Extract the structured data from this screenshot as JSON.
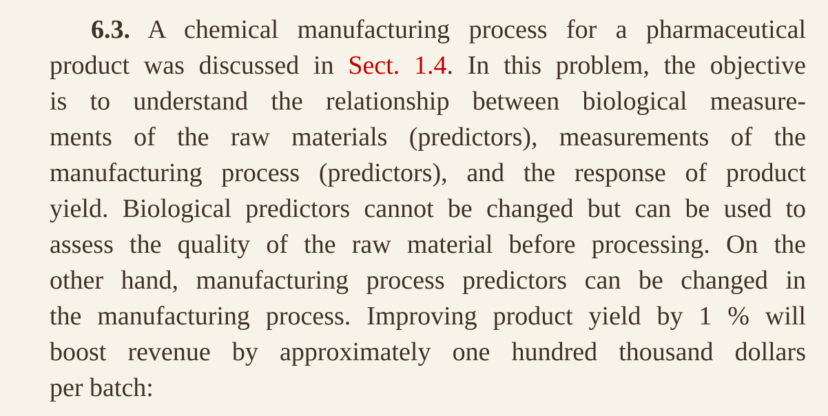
{
  "problem": {
    "number": "6.3.",
    "line1_rest": " A chemical manufacturing process for a pharmaceutical",
    "line2_before_link": "product was discussed in ",
    "section_link": "Sect. 1.4",
    "line2_after_link": ". In this problem, the objective",
    "lines": [
      "is to understand the relationship between biological measure-",
      "ments of the raw materials (predictors), measurements of the",
      "manufacturing process (predictors), and the response of product",
      "yield. Biological predictors cannot be changed but can be used to",
      "assess the quality of the raw material before processing. On the",
      "other hand, manufacturing process predictors can be changed in",
      "the manufacturing process. Improving product yield by 1 % will",
      "boost revenue by approximately one hundred thousand dollars",
      "per batch:"
    ]
  },
  "colors": {
    "background": "#f8f3e8",
    "text": "#3e3127",
    "link": "#c00000"
  }
}
